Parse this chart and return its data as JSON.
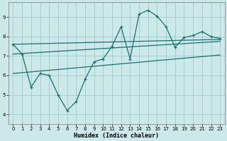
{
  "xlabel": "Humidex (Indice chaleur)",
  "bg_color": "#cce8e8",
  "grid_color": "#99cccc",
  "line_color": "#1a7070",
  "xlim": [
    -0.5,
    23.5
  ],
  "ylim": [
    3.5,
    9.75
  ],
  "yticks": [
    4,
    5,
    6,
    7,
    8,
    9
  ],
  "xticks": [
    0,
    1,
    2,
    3,
    4,
    5,
    6,
    7,
    8,
    9,
    10,
    11,
    12,
    13,
    14,
    15,
    16,
    17,
    18,
    19,
    20,
    21,
    22,
    23
  ],
  "main_x": [
    0,
    1,
    2,
    3,
    4,
    5,
    6,
    7,
    8,
    9,
    10,
    11,
    12,
    13,
    14,
    15,
    16,
    17,
    18,
    19,
    20,
    21,
    22,
    23
  ],
  "main_y": [
    7.6,
    7.1,
    5.4,
    6.1,
    6.0,
    5.0,
    4.2,
    4.65,
    5.8,
    6.7,
    6.85,
    7.5,
    8.5,
    6.85,
    9.15,
    9.35,
    9.05,
    8.5,
    7.45,
    7.95,
    8.05,
    8.25,
    8.0,
    7.9
  ],
  "trend1_x": [
    0,
    23
  ],
  "trend1_y": [
    7.6,
    7.85
  ],
  "trend2_x": [
    0,
    23
  ],
  "trend2_y": [
    7.1,
    7.75
  ],
  "trend3_x": [
    0,
    23
  ],
  "trend3_y": [
    6.1,
    7.05
  ]
}
